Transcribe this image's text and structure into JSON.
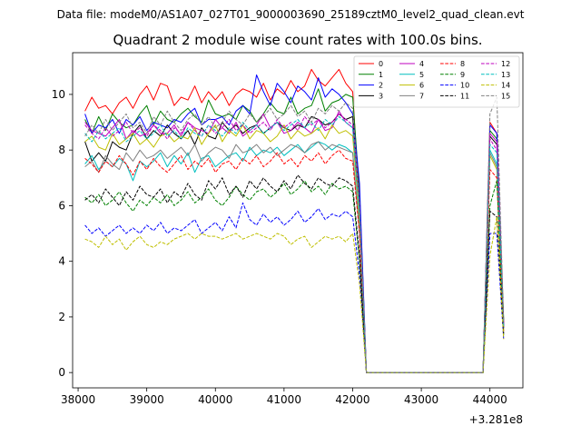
{
  "figure": {
    "suptitle": "Data file: modeM0/AS1A07_027T01_9000003690_25189cztM0_level2_quad_clean.evt"
  },
  "chart_data": {
    "type": "line",
    "title": "Quadrant 2 module wise count rates with 100.0s bins.",
    "xlabel": "",
    "ylabel": "",
    "x_offset_label": "+3.281e8",
    "xlim": [
      37920,
      44480
    ],
    "ylim": [
      -0.55,
      11.5
    ],
    "xticks": [
      38000,
      39000,
      40000,
      41000,
      42000,
      43000,
      44000
    ],
    "xtick_labels": [
      "38000",
      "39000",
      "40000",
      "41000",
      "42000",
      "43000",
      "44000"
    ],
    "yticks": [
      0,
      2,
      4,
      6,
      8,
      10
    ],
    "ytick_labels": [
      "0",
      "2",
      "4",
      "6",
      "8",
      "10"
    ],
    "grid": false,
    "legend_position": "top-right",
    "legend_columns": 4,
    "x": [
      38100,
      38200,
      38300,
      38400,
      38500,
      38600,
      38700,
      38800,
      38900,
      39000,
      39100,
      39200,
      39300,
      39400,
      39500,
      39600,
      39700,
      39800,
      39900,
      40000,
      40100,
      40200,
      40300,
      40400,
      40500,
      40600,
      40700,
      40800,
      40900,
      41000,
      41100,
      41200,
      41300,
      41400,
      41500,
      41600,
      41700,
      41800,
      41900,
      42000,
      42100,
      42200,
      42300,
      42400,
      42500,
      42600,
      42700,
      42800,
      42900,
      43000,
      43100,
      43200,
      43300,
      43400,
      43500,
      43600,
      43700,
      43800,
      43900,
      44000,
      44100,
      44200
    ],
    "series": [
      {
        "name": "0",
        "color": "#ff0000",
        "dash": "solid",
        "values": [
          9.4,
          9.9,
          9.5,
          9.6,
          9.3,
          9.7,
          9.9,
          9.5,
          10.0,
          10.3,
          9.8,
          10.4,
          10.3,
          9.6,
          9.9,
          9.8,
          10.3,
          9.7,
          10.1,
          9.8,
          10.1,
          9.6,
          10.0,
          10.2,
          10.1,
          9.9,
          10.4,
          9.8,
          10.2,
          10.0,
          10.5,
          10.1,
          10.3,
          10.9,
          10.5,
          10.3,
          10.6,
          10.9,
          10.4,
          10.1,
          6.0,
          0.0,
          0,
          0,
          0,
          0,
          0,
          0,
          0,
          0,
          0,
          0,
          0,
          0,
          0,
          0,
          0,
          0,
          0,
          9.0,
          8.6,
          1.8
        ]
      },
      {
        "name": "1",
        "color": "#008000",
        "dash": "solid",
        "values": [
          9.1,
          8.6,
          9.2,
          8.7,
          9.3,
          9.0,
          8.8,
          8.9,
          9.3,
          9.6,
          8.9,
          9.4,
          9.1,
          9.0,
          9.3,
          9.5,
          9.2,
          9.0,
          9.8,
          9.3,
          9.2,
          9.3,
          9.1,
          9.6,
          9.4,
          9.0,
          9.3,
          9.7,
          9.4,
          9.3,
          9.9,
          9.3,
          9.5,
          9.6,
          10.2,
          9.4,
          9.7,
          9.8,
          10.0,
          9.9,
          6.5,
          0.0,
          0,
          0,
          0,
          0,
          0,
          0,
          0,
          0,
          0,
          0,
          0,
          0,
          0,
          0,
          0,
          0,
          0,
          8.7,
          8.4,
          1.9
        ]
      },
      {
        "name": "2",
        "color": "#0000ff",
        "dash": "solid",
        "values": [
          9.3,
          8.6,
          8.9,
          8.8,
          9.1,
          8.6,
          9.1,
          8.9,
          9.2,
          8.7,
          9.0,
          8.9,
          8.8,
          9.1,
          9.0,
          9.3,
          9.5,
          8.9,
          9.1,
          9.1,
          9.2,
          8.9,
          9.4,
          9.6,
          9.3,
          10.7,
          10.1,
          9.6,
          10.4,
          10.1,
          9.7,
          10.3,
          10.1,
          9.8,
          10.6,
          9.9,
          10.2,
          10.0,
          9.7,
          9.3,
          6.8,
          0.0,
          0,
          0,
          0,
          0,
          0,
          0,
          0,
          0,
          0,
          0,
          0,
          0,
          0,
          0,
          0,
          0,
          0,
          8.9,
          8.6,
          1.7
        ]
      },
      {
        "name": "3",
        "color": "#000000",
        "dash": "solid",
        "values": [
          8.3,
          7.6,
          7.9,
          7.6,
          8.3,
          8.1,
          8.0,
          8.6,
          8.9,
          8.4,
          8.7,
          8.5,
          8.9,
          8.6,
          8.4,
          8.7,
          8.2,
          8.8,
          8.5,
          8.4,
          9.0,
          8.7,
          8.9,
          8.6,
          8.8,
          8.9,
          8.6,
          8.8,
          9.0,
          8.8,
          8.7,
          8.9,
          8.8,
          9.2,
          9.1,
          8.9,
          9.0,
          9.3,
          9.1,
          9.2,
          5.8,
          0.0,
          0,
          0,
          0,
          0,
          0,
          0,
          0,
          0,
          0,
          0,
          0,
          0,
          0,
          0,
          0,
          0,
          0,
          8.5,
          8.2,
          1.6
        ]
      },
      {
        "name": "4",
        "color": "#bf00bf",
        "dash": "solid",
        "values": [
          9.0,
          8.7,
          8.6,
          8.5,
          8.8,
          9.1,
          8.4,
          8.7,
          8.5,
          8.6,
          8.9,
          8.6,
          8.6,
          8.9,
          8.5,
          9.0,
          8.8,
          8.7,
          8.6,
          9.1,
          8.8,
          8.6,
          9.0,
          8.5,
          8.7,
          8.9,
          9.3,
          8.8,
          9.0,
          8.6,
          8.7,
          9.0,
          8.8,
          8.6,
          9.1,
          8.7,
          8.8,
          9.4,
          9.0,
          8.8,
          5.9,
          0.0,
          0,
          0,
          0,
          0,
          0,
          0,
          0,
          0,
          0,
          0,
          0,
          0,
          0,
          0,
          0,
          0,
          0,
          8.6,
          8.3,
          1.7
        ]
      },
      {
        "name": "5",
        "color": "#00bfbf",
        "dash": "solid",
        "values": [
          7.5,
          7.8,
          7.3,
          7.6,
          7.4,
          7.7,
          7.5,
          6.9,
          7.6,
          7.4,
          7.6,
          7.9,
          7.4,
          7.8,
          7.5,
          7.9,
          7.2,
          7.7,
          7.8,
          7.4,
          7.6,
          7.8,
          7.9,
          7.6,
          8.1,
          7.8,
          8.0,
          7.9,
          8.1,
          7.8,
          8.0,
          8.2,
          7.9,
          8.1,
          8.3,
          8.2,
          8.0,
          8.2,
          8.1,
          7.9,
          5.2,
          0.0,
          0,
          0,
          0,
          0,
          0,
          0,
          0,
          0,
          0,
          0,
          0,
          0,
          0,
          0,
          0,
          0,
          0,
          8.0,
          7.5,
          1.6
        ]
      },
      {
        "name": "6",
        "color": "#bfbf00",
        "dash": "solid",
        "values": [
          8.3,
          8.5,
          8.1,
          8.0,
          8.6,
          8.2,
          8.4,
          8.6,
          8.2,
          8.4,
          8.1,
          8.5,
          8.6,
          8.3,
          8.5,
          8.4,
          8.8,
          8.2,
          8.6,
          8.9,
          8.3,
          8.7,
          8.5,
          8.9,
          8.4,
          8.7,
          8.6,
          8.3,
          8.5,
          8.9,
          8.4,
          8.7,
          8.5,
          8.6,
          8.8,
          8.4,
          8.9,
          8.6,
          8.7,
          8.5,
          5.5,
          0.0,
          0,
          0,
          0,
          0,
          0,
          0,
          0,
          0,
          0,
          0,
          0,
          0,
          0,
          0,
          0,
          0,
          0,
          7.8,
          7.3,
          1.5
        ]
      },
      {
        "name": "7",
        "color": "#808080",
        "dash": "solid",
        "values": [
          7.4,
          7.6,
          7.2,
          7.8,
          7.5,
          7.3,
          7.9,
          7.6,
          8.0,
          7.7,
          7.8,
          8.0,
          7.7,
          7.9,
          8.1,
          7.8,
          8.2,
          7.6,
          7.9,
          8.1,
          8.0,
          7.7,
          8.2,
          7.9,
          8.0,
          8.2,
          7.9,
          8.1,
          7.8,
          8.0,
          8.2,
          8.1,
          7.9,
          8.2,
          8.3,
          8.0,
          8.2,
          8.1,
          8.0,
          7.9,
          5.0,
          0.0,
          0,
          0,
          0,
          0,
          0,
          0,
          0,
          0,
          0,
          0,
          0,
          0,
          0,
          0,
          0,
          0,
          0,
          7.9,
          7.4,
          1.6
        ]
      },
      {
        "name": "8",
        "color": "#ff0000",
        "dash": "dashed",
        "values": [
          7.7,
          7.5,
          7.2,
          7.6,
          7.4,
          7.8,
          7.5,
          7.1,
          7.6,
          7.3,
          7.7,
          7.4,
          7.2,
          7.5,
          7.8,
          7.3,
          7.6,
          7.4,
          7.7,
          7.2,
          7.5,
          7.6,
          7.3,
          7.7,
          7.5,
          7.8,
          7.4,
          7.6,
          7.9,
          7.5,
          7.7,
          7.4,
          7.8,
          7.6,
          7.9,
          7.5,
          7.8,
          8.0,
          7.7,
          7.6,
          5.0,
          0.0,
          0,
          0,
          0,
          0,
          0,
          0,
          0,
          0,
          0,
          0,
          0,
          0,
          0,
          0,
          0,
          0,
          0,
          7.3,
          7.0,
          1.5
        ]
      },
      {
        "name": "9",
        "color": "#008000",
        "dash": "dashed",
        "values": [
          6.3,
          6.1,
          6.4,
          6.0,
          6.2,
          6.5,
          6.1,
          5.8,
          6.2,
          6.0,
          6.3,
          6.1,
          6.4,
          6.0,
          6.2,
          6.5,
          6.1,
          6.3,
          6.6,
          6.2,
          6.0,
          6.3,
          6.7,
          6.4,
          6.2,
          6.5,
          6.6,
          6.3,
          6.5,
          6.8,
          6.4,
          6.6,
          6.9,
          6.5,
          6.7,
          6.4,
          6.8,
          6.6,
          6.7,
          6.5,
          4.0,
          0.0,
          0,
          0,
          0,
          0,
          0,
          0,
          0,
          0,
          0,
          0,
          0,
          0,
          0,
          0,
          0,
          0,
          0,
          6.0,
          6.9,
          1.3
        ]
      },
      {
        "name": "10",
        "color": "#0000ff",
        "dash": "dashed",
        "values": [
          5.3,
          5.0,
          5.2,
          4.9,
          5.1,
          5.3,
          5.0,
          5.2,
          5.0,
          5.3,
          5.1,
          5.4,
          5.0,
          5.2,
          5.1,
          5.3,
          5.5,
          5.0,
          5.2,
          5.4,
          5.1,
          5.6,
          5.2,
          6.1,
          5.5,
          5.3,
          5.7,
          5.4,
          5.6,
          5.3,
          5.5,
          5.8,
          5.4,
          5.6,
          5.9,
          5.5,
          5.7,
          5.6,
          5.8,
          5.6,
          3.5,
          0.0,
          0,
          0,
          0,
          0,
          0,
          0,
          0,
          0,
          0,
          0,
          0,
          0,
          0,
          0,
          0,
          0,
          0,
          5.0,
          5.0,
          1.2
        ]
      },
      {
        "name": "11",
        "color": "#000000",
        "dash": "dashed",
        "values": [
          6.2,
          6.4,
          6.1,
          6.6,
          6.3,
          6.0,
          6.5,
          6.2,
          6.7,
          6.4,
          6.3,
          6.6,
          6.1,
          6.5,
          6.3,
          6.8,
          6.4,
          6.2,
          6.9,
          6.6,
          7.0,
          6.4,
          6.7,
          6.3,
          6.9,
          6.6,
          7.0,
          6.7,
          6.5,
          6.9,
          6.6,
          7.1,
          6.8,
          6.6,
          7.0,
          6.8,
          6.7,
          7.0,
          6.9,
          6.7,
          4.2,
          0.0,
          0,
          0,
          0,
          0,
          0,
          0,
          0,
          0,
          0,
          0,
          0,
          0,
          0,
          0,
          0,
          0,
          0,
          5.8,
          5.6,
          1.4
        ]
      },
      {
        "name": "12",
        "color": "#bf00bf",
        "dash": "dashed",
        "values": [
          8.9,
          8.6,
          8.4,
          8.8,
          8.5,
          8.7,
          9.0,
          8.6,
          8.8,
          8.5,
          8.9,
          8.7,
          8.4,
          8.8,
          8.6,
          9.0,
          8.7,
          8.5,
          8.9,
          8.6,
          8.8,
          9.1,
          8.7,
          8.9,
          8.6,
          8.8,
          9.0,
          8.7,
          9.1,
          8.8,
          9.0,
          8.7,
          9.2,
          8.9,
          9.1,
          8.8,
          9.0,
          9.3,
          9.1,
          8.9,
          5.8,
          0.0,
          0,
          0,
          0,
          0,
          0,
          0,
          0,
          0,
          0,
          0,
          0,
          0,
          0,
          0,
          0,
          0,
          0,
          8.4,
          8.0,
          1.6
        ]
      },
      {
        "name": "13",
        "color": "#00bfbf",
        "dash": "dashed",
        "values": [
          8.6,
          8.3,
          8.7,
          8.4,
          8.6,
          8.8,
          8.3,
          8.5,
          8.7,
          8.4,
          8.6,
          8.9,
          8.5,
          8.7,
          8.4,
          8.8,
          8.6,
          8.5,
          8.9,
          8.7,
          8.5,
          8.8,
          8.6,
          9.0,
          8.7,
          8.9,
          8.6,
          8.8,
          9.0,
          8.7,
          8.9,
          9.1,
          8.8,
          9.0,
          8.7,
          9.1,
          8.9,
          9.2,
          9.0,
          8.8,
          5.7,
          0.0,
          0,
          0,
          0,
          0,
          0,
          0,
          0,
          0,
          0,
          0,
          0,
          0,
          0,
          0,
          0,
          0,
          0,
          8.2,
          7.9,
          1.6
        ]
      },
      {
        "name": "14",
        "color": "#bfbf00",
        "dash": "dashed",
        "values": [
          4.8,
          4.7,
          4.5,
          4.9,
          4.6,
          4.8,
          4.4,
          4.7,
          4.9,
          4.6,
          4.5,
          4.7,
          4.6,
          4.8,
          4.9,
          5.0,
          4.8,
          5.0,
          4.9,
          4.9,
          4.8,
          4.9,
          5.0,
          4.8,
          4.9,
          5.0,
          4.9,
          4.8,
          5.0,
          4.9,
          4.6,
          4.8,
          4.9,
          4.5,
          4.7,
          4.9,
          4.8,
          4.9,
          4.7,
          5.0,
          3.2,
          0.0,
          0,
          0,
          0,
          0,
          0,
          0,
          0,
          0,
          0,
          0,
          0,
          0,
          0,
          0,
          0,
          0,
          0,
          4.2,
          5.6,
          1.2
        ]
      },
      {
        "name": "15",
        "color": "#808080",
        "dash": "dashed",
        "values": [
          8.5,
          8.9,
          8.6,
          9.1,
          8.7,
          9.0,
          9.3,
          8.8,
          9.0,
          8.6,
          9.2,
          8.9,
          9.4,
          9.0,
          8.7,
          9.1,
          9.3,
          8.9,
          9.2,
          8.8,
          9.0,
          9.4,
          9.1,
          8.9,
          9.3,
          9.0,
          9.2,
          9.5,
          9.1,
          9.3,
          9.6,
          9.2,
          9.4,
          9.0,
          9.5,
          9.3,
          9.6,
          9.4,
          9.7,
          9.5,
          6.0,
          0.0,
          0,
          0,
          0,
          0,
          0,
          0,
          0,
          0,
          0,
          0,
          0,
          0,
          0,
          0,
          0,
          0,
          0,
          9.3,
          9.9,
          1.8
        ]
      }
    ]
  }
}
